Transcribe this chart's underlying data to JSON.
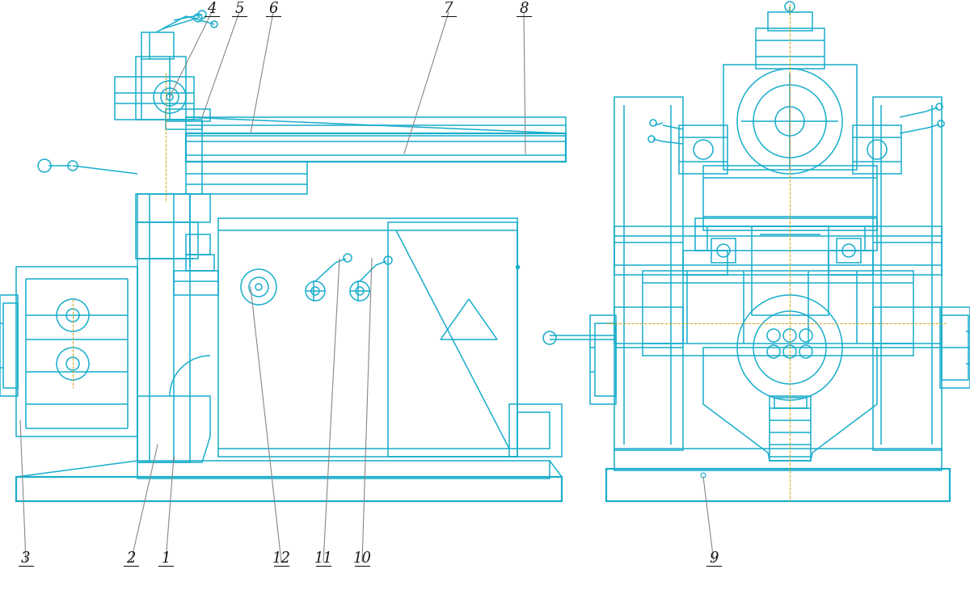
{
  "bg_color": "#ffffff",
  "lc": "#1aaecc",
  "lw": 1.1,
  "lwt": 1.6,
  "lc_leader": "#888888",
  "lc_orange": "#d4a020",
  "label_color": "#1a1a1a",
  "label_fs": 13
}
